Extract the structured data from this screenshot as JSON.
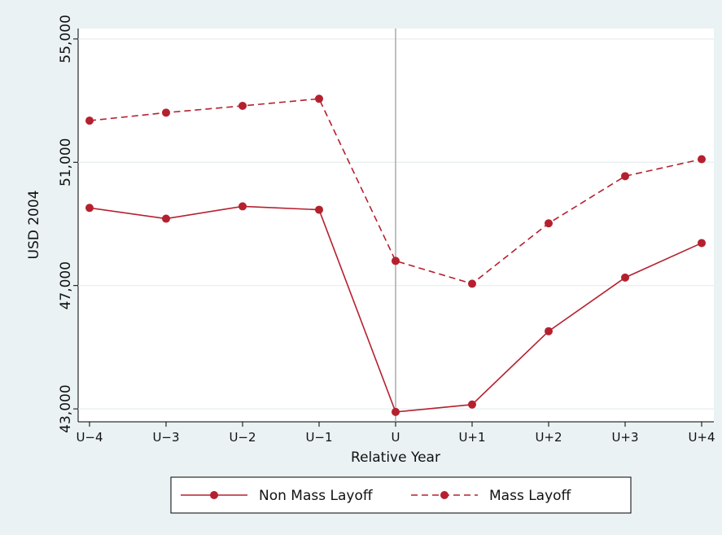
{
  "chart_data": {
    "type": "line",
    "x_label": "Relative Year",
    "y_label": "USD 2004",
    "categories": [
      "U−4",
      "U−3",
      "U−2",
      "U−1",
      "U",
      "U+1",
      "U+2",
      "U+3",
      "U+4"
    ],
    "series": [
      {
        "name": "Non Mass Layoff",
        "color": "#b5202f",
        "dash": false,
        "values": [
          49520,
          49170,
          49570,
          49460,
          42900,
          43140,
          45520,
          47260,
          48380
        ]
      },
      {
        "name": "Mass Layoff",
        "color": "#b5202f",
        "dash": true,
        "values": [
          52350,
          52610,
          52830,
          53060,
          47800,
          47060,
          49020,
          50550,
          51100
        ]
      }
    ],
    "ylim": [
      42580,
      55340
    ],
    "yticks": [
      {
        "value": 43000,
        "label": "43,000"
      },
      {
        "value": 47000,
        "label": "47,000"
      },
      {
        "value": 51000,
        "label": "51,000"
      },
      {
        "value": 55000,
        "label": "55,000"
      }
    ],
    "grid": true,
    "xline": "U",
    "legend": "bottom"
  }
}
